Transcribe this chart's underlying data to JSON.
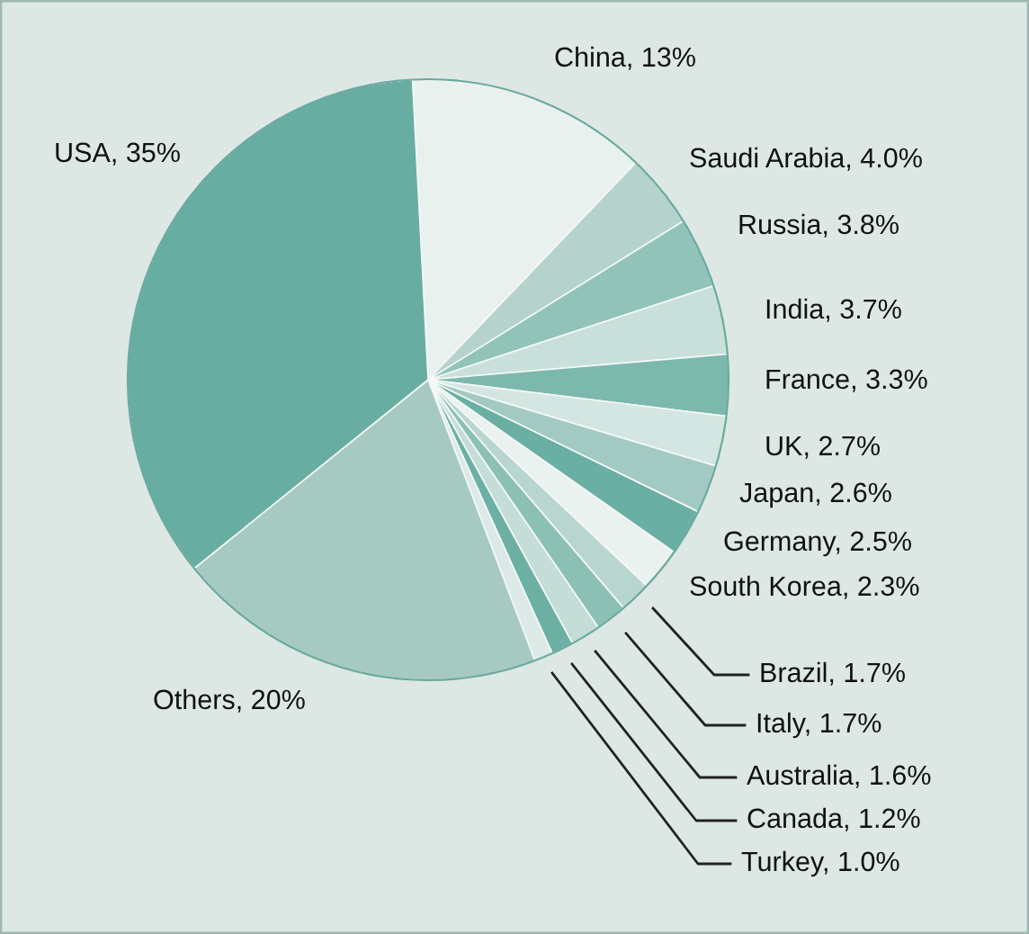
{
  "chart_data": {
    "type": "pie",
    "categories": [
      "China",
      "Saudi Arabia",
      "Russia",
      "India",
      "France",
      "UK",
      "Japan",
      "Germany",
      "South Korea",
      "Brazil",
      "Italy",
      "Australia",
      "Canada",
      "Turkey",
      "Others",
      "USA"
    ],
    "values": [
      13,
      4.0,
      3.8,
      3.7,
      3.3,
      2.7,
      2.6,
      2.5,
      2.3,
      1.7,
      1.7,
      1.6,
      1.2,
      1.0,
      20,
      35
    ],
    "value_labels": [
      "13%",
      "4.0%",
      "3.8%",
      "3.7%",
      "3.3%",
      "2.7%",
      "2.6%",
      "2.5%",
      "2.3%",
      "1.7%",
      "1.7%",
      "1.6%",
      "1.2%",
      "1.0%",
      "20%",
      "35%"
    ],
    "colors": [
      "#e9f1ef",
      "#b5d3cc",
      "#92c3b9",
      "#c9e0da",
      "#7db8ad",
      "#d4e6e1",
      "#a3cac2",
      "#6aafa3",
      "#eaf2f0",
      "#b8d6cf",
      "#8cc0b5",
      "#c4ddd7",
      "#6cb0a4",
      "#dce9e6",
      "#a6cac2",
      "#68ada2"
    ]
  }
}
